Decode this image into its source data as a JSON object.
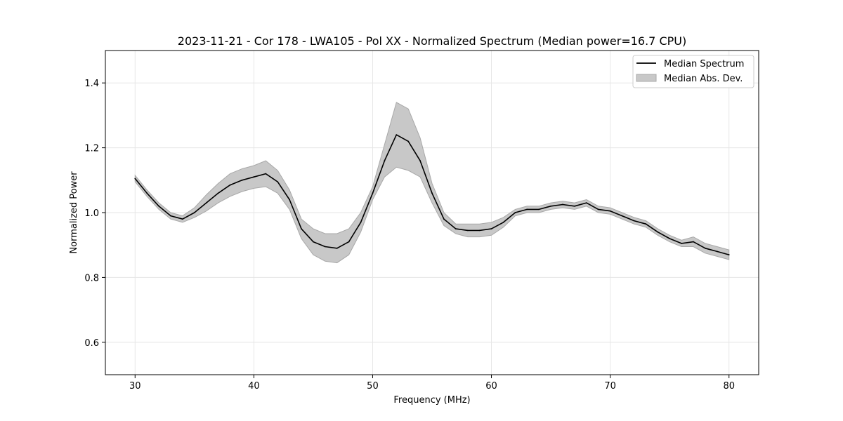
{
  "chart_data": {
    "type": "line",
    "title": "2023-11-21 - Cor 178 - LWA105 - Pol XX - Normalized Spectrum (Median power=16.7 CPU)",
    "xlabel": "Frequency (MHz)",
    "ylabel": "Normalized Power",
    "xlim": [
      27.5,
      82.5
    ],
    "ylim": [
      0.5,
      1.5
    ],
    "xticks": [
      30,
      40,
      50,
      60,
      70,
      80
    ],
    "yticks": [
      0.6,
      0.8,
      1.0,
      1.2,
      1.4
    ],
    "xtick_labels": [
      "30",
      "40",
      "50",
      "60",
      "70",
      "80"
    ],
    "ytick_labels": [
      "0.6",
      "0.8",
      "1.0",
      "1.2",
      "1.4"
    ],
    "grid": true,
    "legend_position": "top-right",
    "legend": [
      "Median Spectrum",
      "Median Abs. Dev."
    ],
    "colors": {
      "median_line": "#000000",
      "mad_fill": "#c8c8c8",
      "mad_edge": "#a8a8a8",
      "grid": "#e6e6e6"
    },
    "series": [
      {
        "name": "Median Spectrum",
        "x": [
          30,
          31,
          32,
          33,
          34,
          35,
          36,
          37,
          38,
          39,
          40,
          41,
          42,
          43,
          44,
          45,
          46,
          47,
          48,
          49,
          50,
          51,
          52,
          53,
          54,
          55,
          56,
          57,
          58,
          59,
          60,
          61,
          62,
          63,
          64,
          65,
          66,
          67,
          68,
          69,
          70,
          71,
          72,
          73,
          74,
          75,
          76,
          77,
          78,
          79,
          80
        ],
        "values": [
          1.105,
          1.06,
          1.02,
          0.99,
          0.98,
          1.0,
          1.03,
          1.06,
          1.085,
          1.1,
          1.11,
          1.12,
          1.095,
          1.04,
          0.95,
          0.91,
          0.895,
          0.89,
          0.91,
          0.97,
          1.06,
          1.16,
          1.24,
          1.22,
          1.16,
          1.06,
          0.98,
          0.95,
          0.945,
          0.945,
          0.95,
          0.97,
          1.0,
          1.01,
          1.01,
          1.02,
          1.025,
          1.02,
          1.03,
          1.01,
          1.005,
          0.99,
          0.975,
          0.965,
          0.94,
          0.92,
          0.905,
          0.91,
          0.89,
          0.88,
          0.87
        ]
      },
      {
        "name": "Median Abs. Dev.",
        "x": [
          30,
          31,
          32,
          33,
          34,
          35,
          36,
          37,
          38,
          39,
          40,
          41,
          42,
          43,
          44,
          45,
          46,
          47,
          48,
          49,
          50,
          51,
          52,
          53,
          54,
          55,
          56,
          57,
          58,
          59,
          60,
          61,
          62,
          63,
          64,
          65,
          66,
          67,
          68,
          69,
          70,
          71,
          72,
          73,
          74,
          75,
          76,
          77,
          78,
          79,
          80
        ],
        "lower": [
          1.095,
          1.05,
          1.01,
          0.98,
          0.97,
          0.985,
          1.005,
          1.03,
          1.05,
          1.065,
          1.075,
          1.08,
          1.06,
          1.01,
          0.92,
          0.87,
          0.85,
          0.845,
          0.87,
          0.94,
          1.04,
          1.11,
          1.14,
          1.13,
          1.11,
          1.03,
          0.96,
          0.935,
          0.925,
          0.925,
          0.93,
          0.955,
          0.99,
          1.0,
          1.0,
          1.01,
          1.015,
          1.01,
          1.02,
          1.0,
          0.995,
          0.98,
          0.965,
          0.955,
          0.93,
          0.91,
          0.895,
          0.895,
          0.875,
          0.865,
          0.855
        ],
        "upper": [
          1.115,
          1.07,
          1.03,
          1.0,
          0.99,
          1.015,
          1.055,
          1.09,
          1.12,
          1.135,
          1.145,
          1.16,
          1.13,
          1.07,
          0.98,
          0.95,
          0.935,
          0.935,
          0.95,
          1.0,
          1.08,
          1.21,
          1.34,
          1.32,
          1.23,
          1.09,
          1.0,
          0.965,
          0.965,
          0.965,
          0.97,
          0.985,
          1.01,
          1.02,
          1.02,
          1.03,
          1.035,
          1.03,
          1.04,
          1.02,
          1.015,
          1.0,
          0.985,
          0.975,
          0.95,
          0.93,
          0.915,
          0.925,
          0.905,
          0.895,
          0.885
        ]
      }
    ]
  }
}
